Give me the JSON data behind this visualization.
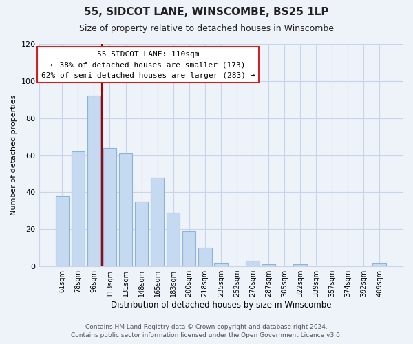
{
  "title": "55, SIDCOT LANE, WINSCOMBE, BS25 1LP",
  "subtitle": "Size of property relative to detached houses in Winscombe",
  "xlabel": "Distribution of detached houses by size in Winscombe",
  "ylabel": "Number of detached properties",
  "bar_labels": [
    "61sqm",
    "78sqm",
    "96sqm",
    "113sqm",
    "131sqm",
    "148sqm",
    "165sqm",
    "183sqm",
    "200sqm",
    "218sqm",
    "235sqm",
    "252sqm",
    "270sqm",
    "287sqm",
    "305sqm",
    "322sqm",
    "339sqm",
    "357sqm",
    "374sqm",
    "392sqm",
    "409sqm"
  ],
  "bar_values": [
    38,
    62,
    92,
    64,
    61,
    35,
    48,
    29,
    19,
    10,
    2,
    0,
    3,
    1,
    0,
    1,
    0,
    0,
    0,
    0,
    2
  ],
  "bar_color": "#c5d9f1",
  "bar_edge_color": "#8ab4da",
  "vline_x_index": 2.5,
  "vline_color": "#aa0000",
  "annotation_line1": "55 SIDCOT LANE: 110sqm",
  "annotation_line2": "← 38% of detached houses are smaller (173)",
  "annotation_line3": "62% of semi-detached houses are larger (283) →",
  "annotation_box_color": "#ffffff",
  "annotation_box_edgecolor": "#cc2222",
  "ylim": [
    0,
    120
  ],
  "yticks": [
    0,
    20,
    40,
    60,
    80,
    100,
    120
  ],
  "footer_line1": "Contains HM Land Registry data © Crown copyright and database right 2024.",
  "footer_line2": "Contains public sector information licensed under the Open Government Licence v3.0.",
  "grid_color": "#c8d4e8",
  "bg_color": "#eef2f9"
}
